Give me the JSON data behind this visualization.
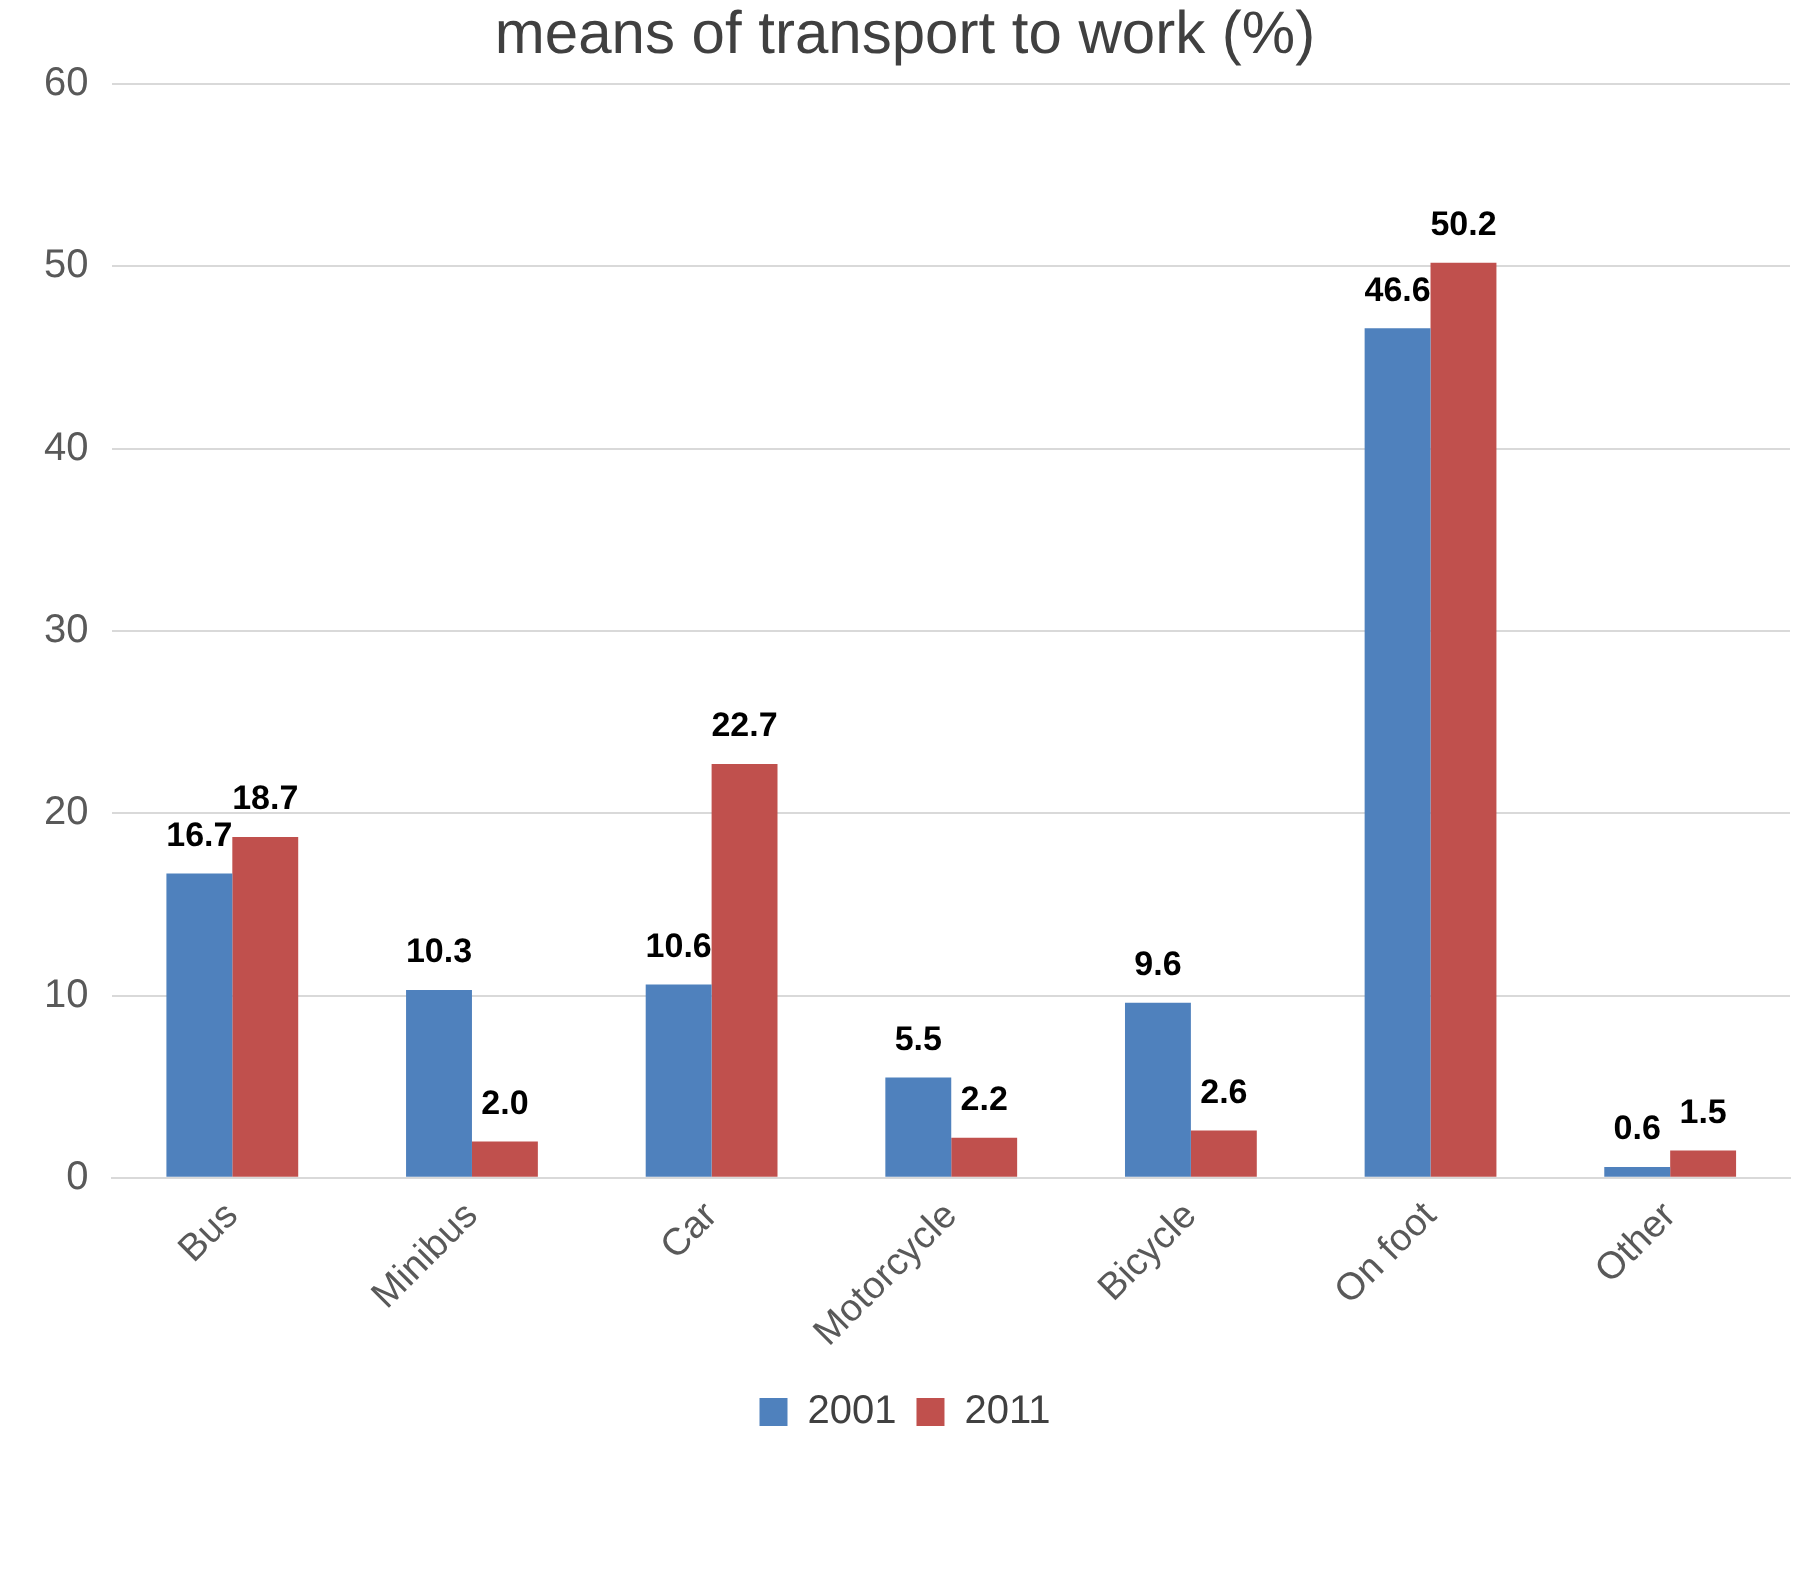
{
  "chart_data": {
    "type": "bar",
    "title": "means of transport to work (%)",
    "categories": [
      "Bus",
      "Minibus",
      "Car",
      "Motorcycle",
      "Bicycle",
      "On foot",
      "Other"
    ],
    "series": [
      {
        "name": "2001",
        "color": "#4f81bd",
        "values": [
          16.7,
          10.3,
          10.6,
          5.5,
          9.6,
          46.6,
          0.6
        ],
        "value_labels": [
          "16.7",
          "10.3",
          "10.6",
          "5.5",
          "9.6",
          "46.6",
          "0.6"
        ]
      },
      {
        "name": "2011",
        "color": "#c0504d",
        "values": [
          18.7,
          2.0,
          22.7,
          2.2,
          2.6,
          50.2,
          1.5
        ],
        "value_labels": [
          "18.7",
          "2.0",
          "22.7",
          "2.2",
          "2.6",
          "50.2",
          "1.5"
        ]
      }
    ],
    "ylim": [
      0,
      60
    ],
    "yticks": [
      0,
      10,
      20,
      30,
      40,
      50,
      60
    ],
    "grid": "y",
    "legend": "bottom"
  }
}
